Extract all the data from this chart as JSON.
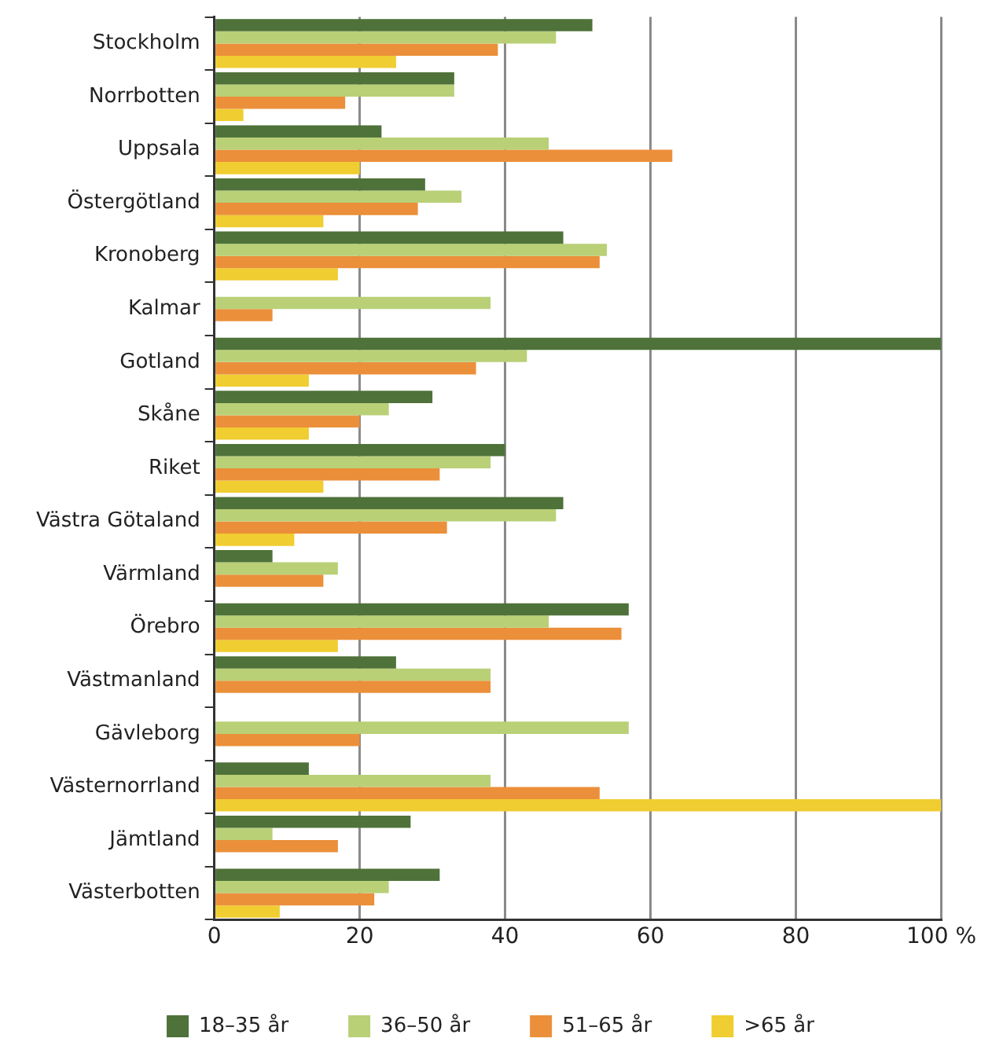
{
  "chart_data": {
    "type": "bar",
    "orientation": "horizontal",
    "categories": [
      "Stockholm",
      "Norrbotten",
      "Uppsala",
      "Östergötland",
      "Kronoberg",
      "Kalmar",
      "Gotland",
      "Skåne",
      "Riket",
      "Västra Götaland",
      "Värmland",
      "Örebro",
      "Västmanland",
      "Gävleborg",
      "Västernorrland",
      "Jämtland",
      "Västerbotten"
    ],
    "series": [
      {
        "name": "18–35 år",
        "color": "#4e7239",
        "values": [
          52,
          33,
          23,
          29,
          48,
          0,
          100,
          30,
          40,
          48,
          8,
          57,
          25,
          0,
          13,
          27,
          31
        ]
      },
      {
        "name": "36–50 år",
        "color": "#b9d077",
        "values": [
          47,
          33,
          46,
          34,
          54,
          38,
          43,
          24,
          38,
          47,
          17,
          46,
          38,
          57,
          38,
          8,
          24
        ]
      },
      {
        "name": "51–65 år",
        "color": "#eb8f3a",
        "values": [
          39,
          18,
          63,
          28,
          53,
          8,
          36,
          20,
          31,
          32,
          15,
          56,
          38,
          20,
          53,
          17,
          22
        ]
      },
      {
        "name": ">65 år",
        "color": "#f0cd30",
        "values": [
          25,
          4,
          20,
          15,
          17,
          0,
          13,
          13,
          15,
          11,
          0,
          17,
          0,
          0,
          100,
          0,
          9
        ]
      }
    ],
    "xlim": [
      0,
      100
    ],
    "xticks": [
      0,
      20,
      40,
      60,
      80,
      {
        "value": 100,
        "label": "100 %"
      }
    ],
    "grid": "x",
    "legend": "bottom"
  }
}
